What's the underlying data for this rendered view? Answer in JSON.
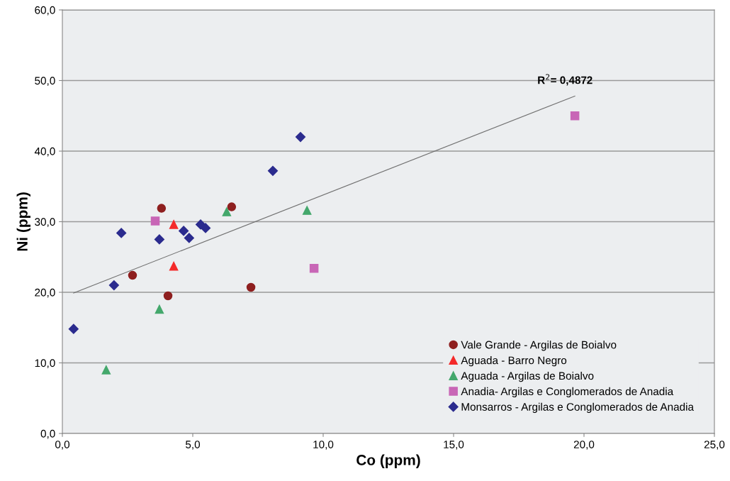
{
  "chart_data": {
    "type": "scatter",
    "xlabel": "Co (ppm)",
    "ylabel": "Ni (ppm)",
    "series": [
      {
        "name": "Vale Grande - Argilas de Boialvo",
        "color": "#8e1f1f",
        "marker": "circle",
        "x": [
          3.8,
          6.49,
          2.69,
          4.05,
          7.23
        ],
        "values": [
          31.9,
          32.1,
          22.4,
          19.5,
          20.7
        ]
      },
      {
        "name": "Aguada - Barro Negro",
        "color": "#f42a2a",
        "marker": "triangle",
        "x": [
          4.27,
          4.27
        ],
        "values": [
          29.6,
          23.7
        ]
      },
      {
        "name": "Aguada - Argilas de Boialvo",
        "color": "#44a86c",
        "marker": "triangle",
        "x": [
          6.3,
          9.38,
          3.72,
          1.68
        ],
        "values": [
          31.4,
          31.6,
          17.6,
          9.0
        ]
      },
      {
        "name": "Anadia- Argilas e Conglomerados de Anadia",
        "color": "#c866b6",
        "marker": "square",
        "x": [
          3.56,
          9.65,
          19.65
        ],
        "values": [
          30.1,
          23.4,
          45.0
        ]
      },
      {
        "name": "Monsarros - Argilas e Conglomerados de Anadia",
        "color": "#2b2b8e",
        "marker": "diamond",
        "x": [
          0.43,
          1.98,
          2.26,
          3.72,
          4.65,
          4.86,
          5.3,
          5.49,
          8.07,
          9.13
        ],
        "values": [
          14.8,
          21.0,
          28.4,
          27.5,
          28.7,
          27.7,
          29.6,
          29.1,
          37.2,
          42.0
        ]
      },
      {
        "type": "line",
        "color": "#707070",
        "marker": "none",
        "x": [
          0.43,
          19.65
        ],
        "values": [
          19.9,
          47.8
        ]
      }
    ],
    "annotations": [
      {
        "text": "R$^{2}$= 0,4872",
        "x": 19.65,
        "y": 47.8
      }
    ],
    "xlim": [
      0,
      25
    ],
    "ylim": [
      0,
      60
    ],
    "xticks": [
      {
        "value": 0,
        "label": "0,0"
      },
      {
        "value": 5,
        "label": "5,0"
      },
      {
        "value": 10,
        "label": "10,0"
      },
      {
        "value": 15,
        "label": "15,0"
      },
      {
        "value": 20,
        "label": "20,0"
      },
      {
        "value": 25,
        "label": "25,0"
      }
    ],
    "yticks": [
      {
        "value": 0,
        "label": "0,0"
      },
      {
        "value": 10,
        "label": "10,0"
      },
      {
        "value": 20,
        "label": "20,0"
      },
      {
        "value": 30,
        "label": "30,0"
      },
      {
        "value": 40,
        "label": "40,0"
      },
      {
        "value": 50,
        "label": "50,0"
      },
      {
        "value": 60,
        "label": "60,0"
      }
    ],
    "grid": "y",
    "legend": "bottom right"
  }
}
